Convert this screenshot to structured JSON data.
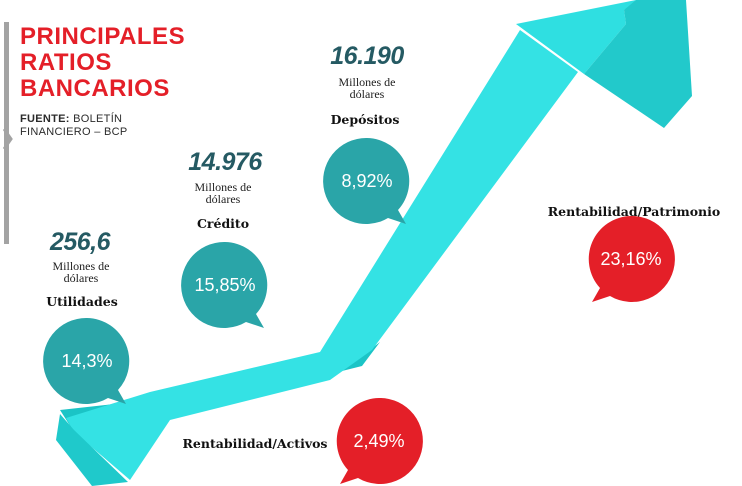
{
  "title_lines": [
    "PRINCIPALES",
    "RATIOS",
    "BANCARIOS"
  ],
  "source": {
    "label": "FUENTE:",
    "text_line1": "BOLETÍN",
    "text_line2": "FINANCIERO – BCP"
  },
  "colors": {
    "teal": "#2aa5a8",
    "red": "#e41f28",
    "arrow": "#2ee0e2",
    "arrow_dark": "#19c2c4",
    "amount": "#255a63"
  },
  "items": [
    {
      "amount": "256,6",
      "unit_line1": "Millones de",
      "unit_line2": "dólares",
      "label": "Utilidades",
      "pct": "14,3%",
      "kind": "teal"
    },
    {
      "amount": "14.976",
      "unit_line1": "Millones de",
      "unit_line2": "dólares",
      "label": "Crédito",
      "pct": "15,85%",
      "kind": "teal"
    },
    {
      "amount": "16.190",
      "unit_line1": "Millones de",
      "unit_line2": "dólares",
      "label": "Depósitos",
      "pct": "8,92%",
      "kind": "teal"
    },
    {
      "label": "Rentabilidad/Activos",
      "pct": "2,49%",
      "kind": "red"
    },
    {
      "label": "Rentabilidad/Patrimonio",
      "pct": "23,16%",
      "kind": "red"
    }
  ],
  "chart_data": {
    "type": "infographic",
    "title": "PRINCIPALES RATIOS BANCARIOS",
    "source": "FUENTE: BOLETÍN FINANCIERO – BCP",
    "indicators": [
      {
        "name": "Utilidades",
        "amount": 256.6,
        "unit": "Millones de dólares",
        "percent": 14.3
      },
      {
        "name": "Crédito",
        "amount": 14976,
        "unit": "Millones de dólares",
        "percent": 15.85
      },
      {
        "name": "Depósitos",
        "amount": 16190,
        "unit": "Millones de dólares",
        "percent": 8.92
      },
      {
        "name": "Rentabilidad/Activos",
        "percent": 2.49
      },
      {
        "name": "Rentabilidad/Patrimonio",
        "percent": 23.16
      }
    ]
  }
}
